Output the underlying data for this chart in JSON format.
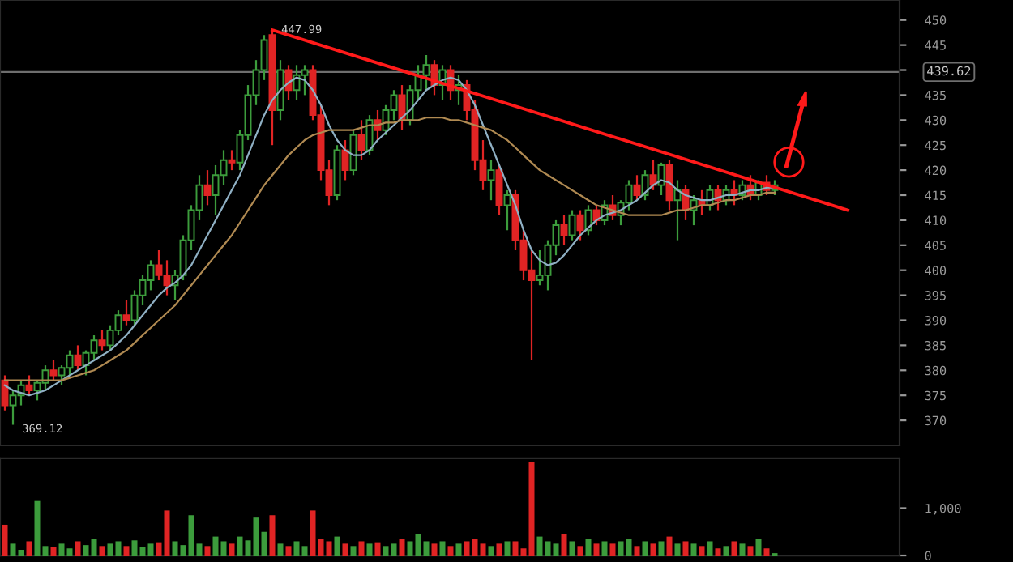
{
  "chart_data": [
    {
      "type": "candlestick",
      "categories": [
        null,
        null,
        null,
        null,
        null,
        null,
        null,
        null,
        null,
        null,
        null,
        null,
        null,
        null,
        null,
        null,
        null,
        null,
        null,
        null,
        null,
        null,
        null,
        null,
        null,
        null,
        null,
        null,
        null,
        null,
        null,
        null,
        null,
        null,
        null,
        null,
        null,
        null,
        null,
        null,
        null,
        null,
        null,
        null,
        null,
        null,
        null,
        null,
        null,
        null,
        null,
        null,
        null,
        null,
        null,
        null,
        null,
        null,
        null,
        null,
        null,
        null,
        null,
        null,
        null,
        null,
        null,
        null,
        null,
        null,
        null,
        null,
        null,
        null,
        null,
        null,
        null,
        null,
        null,
        null,
        null,
        null,
        null,
        null,
        null,
        null,
        null,
        null,
        null,
        null,
        null,
        null,
        null,
        null,
        null,
        null,
        null,
        null,
        null,
        null,
        null,
        null,
        null,
        null,
        null,
        null,
        null,
        null,
        null,
        null
      ],
      "ohlc": [
        [
          378,
          379,
          372,
          373
        ],
        [
          373,
          376,
          369.12,
          375
        ],
        [
          375,
          378,
          373,
          377
        ],
        [
          377,
          379,
          375,
          376
        ],
        [
          376,
          378,
          374,
          377.5
        ],
        [
          377.5,
          381,
          376,
          380
        ],
        [
          380,
          382,
          378,
          379
        ],
        [
          379,
          381,
          377,
          380.5
        ],
        [
          380.5,
          384,
          379,
          383
        ],
        [
          383,
          385,
          380,
          381
        ],
        [
          381,
          384,
          379,
          383.5
        ],
        [
          383.5,
          387,
          382,
          386
        ],
        [
          386,
          388,
          384,
          385
        ],
        [
          385,
          389,
          384,
          388
        ],
        [
          388,
          392,
          387,
          391
        ],
        [
          391,
          394,
          389,
          390
        ],
        [
          390,
          396,
          389,
          395
        ],
        [
          395,
          399,
          393,
          398
        ],
        [
          398,
          402,
          396,
          401
        ],
        [
          401,
          404,
          398,
          399
        ],
        [
          399,
          402,
          395,
          397
        ],
        [
          397,
          400,
          394,
          399
        ],
        [
          399,
          407,
          398,
          406
        ],
        [
          406,
          413,
          404,
          412
        ],
        [
          412,
          419,
          410,
          417
        ],
        [
          417,
          420,
          413,
          415
        ],
        [
          415,
          421,
          411,
          419
        ],
        [
          419,
          424,
          417,
          422
        ],
        [
          422,
          424,
          420,
          421.5
        ],
        [
          421.5,
          428,
          420,
          427
        ],
        [
          427,
          437,
          426,
          435
        ],
        [
          435,
          442,
          433,
          440
        ],
        [
          440,
          447,
          438,
          446
        ],
        [
          447,
          447.99,
          425,
          432
        ],
        [
          432,
          442,
          430,
          440
        ],
        [
          440,
          441,
          434,
          436
        ],
        [
          436,
          441,
          434,
          439
        ],
        [
          439,
          441,
          435,
          440
        ],
        [
          440,
          441,
          430,
          431
        ],
        [
          431,
          433,
          418,
          420
        ],
        [
          420,
          422,
          413,
          415
        ],
        [
          415,
          425,
          414,
          424
        ],
        [
          424,
          426,
          418,
          420
        ],
        [
          420,
          428,
          419,
          427
        ],
        [
          427,
          430,
          422,
          424
        ],
        [
          424,
          431,
          423,
          430
        ],
        [
          430,
          432,
          426,
          428
        ],
        [
          428,
          433,
          427,
          432
        ],
        [
          432,
          436,
          430,
          435
        ],
        [
          435,
          437,
          428,
          430
        ],
        [
          430,
          437,
          429,
          436
        ],
        [
          436,
          441,
          434,
          439
        ],
        [
          439,
          443,
          436,
          441
        ],
        [
          441,
          442,
          435,
          437
        ],
        [
          437,
          441,
          434,
          440
        ],
        [
          440,
          441,
          434,
          436
        ],
        [
          436,
          439,
          433,
          437
        ],
        [
          437,
          438,
          430,
          432
        ],
        [
          432,
          434,
          420,
          422
        ],
        [
          422,
          426,
          416,
          418
        ],
        [
          418,
          422,
          414,
          420
        ],
        [
          420,
          421,
          411,
          413
        ],
        [
          413,
          416,
          408,
          415
        ],
        [
          415,
          416,
          404,
          406
        ],
        [
          406,
          408,
          398,
          400
        ],
        [
          400,
          404,
          382,
          398
        ],
        [
          398,
          404,
          397,
          399
        ],
        [
          399,
          406,
          396,
          405
        ],
        [
          405,
          410,
          403,
          409
        ],
        [
          409,
          411,
          405,
          407
        ],
        [
          407,
          412,
          406,
          411
        ],
        [
          411,
          412,
          406,
          408
        ],
        [
          408,
          413,
          407,
          412
        ],
        [
          412,
          413,
          409,
          410
        ],
        [
          410,
          414,
          409,
          413
        ],
        [
          413,
          415,
          410,
          411
        ],
        [
          411,
          414,
          409,
          413.5
        ],
        [
          413.5,
          418,
          412,
          417
        ],
        [
          417,
          419,
          414,
          415
        ],
        [
          415,
          420,
          414,
          419
        ],
        [
          419,
          422,
          416,
          417
        ],
        [
          417,
          421.5,
          415,
          421
        ],
        [
          421,
          422,
          412,
          414
        ],
        [
          414,
          418,
          406,
          416
        ],
        [
          416,
          417,
          410,
          412
        ],
        [
          412,
          415,
          409,
          414
        ],
        [
          414,
          416,
          411,
          413
        ],
        [
          413,
          417,
          412,
          416
        ],
        [
          416,
          417,
          412,
          414
        ],
        [
          414,
          417,
          413,
          416
        ],
        [
          416,
          418,
          413,
          415
        ],
        [
          415,
          418,
          414,
          417
        ],
        [
          417,
          419,
          414,
          415
        ],
        [
          415,
          418,
          414,
          417.5
        ],
        [
          417.5,
          419,
          415,
          416
        ],
        [
          416,
          418,
          415,
          417
        ],
        null,
        null,
        null,
        null,
        null,
        null,
        null,
        null,
        null,
        null,
        null,
        null,
        null,
        null
      ],
      "colors": [
        "#e02424",
        "#3c9c3c",
        "#3c9c3c",
        "#e02424",
        "#3c9c3c",
        "#3c9c3c",
        "#e02424",
        "#3c9c3c",
        "#3c9c3c",
        "#e02424",
        "#3c9c3c",
        "#3c9c3c",
        "#e02424",
        "#3c9c3c",
        "#3c9c3c",
        "#e02424",
        "#3c9c3c",
        "#3c9c3c",
        "#3c9c3c",
        "#e02424",
        "#e02424",
        "#3c9c3c",
        "#3c9c3c",
        "#3c9c3c",
        "#3c9c3c",
        "#e02424",
        "#3c9c3c",
        "#3c9c3c",
        "#e02424",
        "#3c9c3c",
        "#3c9c3c",
        "#3c9c3c",
        "#3c9c3c",
        "#e02424",
        "#3c9c3c",
        "#e02424",
        "#3c9c3c",
        "#3c9c3c",
        "#e02424",
        "#e02424",
        "#e02424",
        "#3c9c3c",
        "#e02424",
        "#3c9c3c",
        "#e02424",
        "#3c9c3c",
        "#e02424",
        "#3c9c3c",
        "#3c9c3c",
        "#e02424",
        "#3c9c3c",
        "#3c9c3c",
        "#3c9c3c",
        "#e02424",
        "#3c9c3c",
        "#e02424",
        "#3c9c3c",
        "#e02424",
        "#e02424",
        "#e02424",
        "#3c9c3c",
        "#e02424",
        "#3c9c3c",
        "#e02424",
        "#e02424",
        "#e02424",
        "#3c9c3c",
        "#3c9c3c",
        "#3c9c3c",
        "#e02424",
        "#3c9c3c",
        "#e02424",
        "#3c9c3c",
        "#e02424",
        "#3c9c3c",
        "#e02424",
        "#3c9c3c",
        "#3c9c3c",
        "#e02424",
        "#3c9c3c",
        "#e02424",
        "#3c9c3c",
        "#e02424",
        "#3c9c3c",
        "#e02424",
        "#3c9c3c",
        "#e02424",
        "#3c9c3c",
        "#e02424",
        "#3c9c3c",
        "#e02424",
        "#3c9c3c",
        "#e02424",
        "#3c9c3c",
        "#e02424",
        "#3c9c3c",
        null,
        null,
        null,
        null,
        null,
        null,
        null,
        null,
        null,
        null,
        null,
        null,
        null,
        null
      ],
      "series": [
        {
          "type": "line",
          "color": "#8fb0c4",
          "values": [
            377,
            376,
            375.5,
            375,
            375.5,
            376,
            377,
            378,
            379,
            380,
            381,
            382,
            383,
            384,
            385.5,
            387,
            389,
            391,
            393,
            395,
            396.5,
            397.5,
            399,
            401,
            404,
            407,
            410,
            413,
            416,
            419,
            423,
            427,
            431,
            434,
            436,
            437.5,
            438.5,
            438,
            436,
            433,
            429,
            426,
            424,
            423,
            423,
            424,
            426,
            427.5,
            429,
            430.5,
            432,
            434,
            436,
            437,
            438,
            438.5,
            438,
            436,
            433,
            429,
            425,
            421,
            417,
            413,
            408,
            404,
            402,
            401,
            401.5,
            403,
            405,
            407,
            408.5,
            410,
            411,
            411.5,
            412,
            413,
            414,
            415.5,
            417,
            418,
            417.5,
            416,
            415,
            414.5,
            414,
            414,
            414.5,
            415,
            415,
            415.5,
            416,
            416,
            416.5,
            416.5,
            null,
            null,
            null,
            null,
            null,
            null,
            null,
            null,
            null,
            null,
            null,
            null,
            null,
            null
          ]
        },
        {
          "type": "line",
          "color": "#b08a52",
          "values": [
            378,
            378,
            378,
            378,
            378,
            378,
            378,
            378,
            378.5,
            379,
            379.5,
            380,
            381,
            382,
            383,
            384,
            385.5,
            387,
            388.5,
            390,
            391.5,
            393,
            395,
            397,
            399,
            401,
            403,
            405,
            407,
            409.5,
            412,
            414.5,
            417,
            419,
            421,
            423,
            424.5,
            426,
            427,
            427.5,
            428,
            428,
            428,
            428,
            428.5,
            429,
            429,
            429.5,
            429.5,
            430,
            430,
            430,
            430.5,
            430.5,
            430.5,
            430,
            430,
            429.5,
            429,
            428.5,
            428,
            427,
            426,
            424.5,
            423,
            421.5,
            420,
            419,
            418,
            417,
            416,
            415,
            414,
            413,
            412.5,
            412,
            411.5,
            411,
            411,
            411,
            411,
            411,
            411.5,
            412,
            412,
            412.5,
            413,
            413,
            413.5,
            414,
            414,
            414.5,
            415,
            415,
            415.5,
            415.5,
            null,
            null,
            null,
            null,
            null,
            null,
            null,
            null,
            null,
            null,
            null,
            null,
            null,
            null
          ]
        },
        {
          "type": "line",
          "color": "#ff1a1a",
          "values": [
            null,
            null,
            null,
            null,
            null,
            null,
            null,
            null,
            null,
            null,
            null,
            null,
            null,
            null,
            null,
            null,
            null,
            null,
            null,
            null,
            null,
            null,
            null,
            null,
            null,
            null,
            null,
            null,
            null,
            null,
            null,
            null,
            null,
            448,
            null,
            null,
            null,
            null,
            null,
            null,
            null,
            null,
            null,
            null,
            null,
            null,
            null,
            null,
            null,
            null,
            null,
            null,
            null,
            null,
            null,
            null,
            null,
            null,
            null,
            null,
            null,
            null,
            null,
            null,
            null,
            null,
            null,
            null,
            null,
            null,
            null,
            null,
            null,
            null,
            null,
            null,
            null,
            null,
            null,
            null,
            null,
            null,
            null,
            null,
            null,
            null,
            null,
            null,
            null,
            null,
            null,
            null,
            null,
            null,
            null,
            null,
            null,
            null,
            null,
            null,
            null,
            null,
            null,
            null,
            412,
            null,
            null,
            null,
            null,
            null
          ]
        }
      ],
      "ylim": [
        365,
        454
      ],
      "yticks": [
        370,
        375,
        380,
        385,
        390,
        395,
        400,
        405,
        410,
        415,
        420,
        425,
        430,
        435,
        {
          "value": 440,
          "label": null
        },
        445,
        450
      ],
      "ref_lines": [
        {
          "axis": "y",
          "value": 439.62,
          "label": "439.62",
          "color": "#6e6e6e"
        }
      ],
      "annotations": [
        {
          "text": "447.99",
          "y": 447.99
        },
        "369.12"
      ],
      "tick_labels": "y",
      "legend": false
    },
    {
      "type": "bar",
      "categories": [
        null,
        null,
        null,
        null,
        null,
        null,
        null,
        null,
        null,
        null,
        null,
        null,
        null,
        null,
        null,
        null,
        null,
        null,
        null,
        null,
        null,
        null,
        null,
        null,
        null,
        null,
        null,
        null,
        null,
        null,
        null,
        null,
        null,
        null,
        null,
        null,
        null,
        null,
        null,
        null,
        null,
        null,
        null,
        null,
        null,
        null,
        null,
        null,
        null,
        null,
        null,
        null,
        null,
        null,
        null,
        null,
        null,
        null,
        null,
        null,
        null,
        null,
        null,
        null,
        null,
        null,
        null,
        null,
        null,
        null,
        null,
        null,
        null,
        null,
        null,
        null,
        null,
        null,
        null,
        null,
        null,
        null,
        null,
        null,
        null,
        null,
        null,
        null,
        null,
        null,
        null,
        null,
        null,
        null,
        null,
        null,
        null,
        null,
        null,
        null,
        null,
        null,
        null,
        null,
        null,
        null,
        null,
        null,
        null,
        null
      ],
      "values": [
        650,
        250,
        120,
        300,
        1150,
        200,
        180,
        250,
        150,
        300,
        220,
        350,
        200,
        250,
        300,
        200,
        320,
        180,
        250,
        280,
        950,
        300,
        220,
        850,
        250,
        200,
        400,
        300,
        250,
        400,
        320,
        800,
        500,
        850,
        250,
        200,
        300,
        200,
        950,
        350,
        300,
        400,
        250,
        200,
        300,
        250,
        280,
        200,
        250,
        350,
        300,
        450,
        300,
        250,
        300,
        200,
        250,
        300,
        350,
        250,
        200,
        250,
        300,
        300,
        150,
        1970,
        400,
        300,
        250,
        450,
        300,
        200,
        350,
        250,
        300,
        250,
        300,
        350,
        200,
        300,
        250,
        300,
        400,
        250,
        300,
        250,
        200,
        300,
        150,
        200,
        300,
        250,
        200,
        350,
        150,
        50,
        null,
        null,
        null,
        null,
        null,
        null,
        null,
        null,
        null,
        null,
        null,
        null,
        null,
        null
      ],
      "colors": [
        "#e02424",
        "#3c9c3c",
        "#3c9c3c",
        "#e02424",
        "#3c9c3c",
        "#3c9c3c",
        "#e02424",
        "#3c9c3c",
        "#3c9c3c",
        "#e02424",
        "#3c9c3c",
        "#3c9c3c",
        "#e02424",
        "#3c9c3c",
        "#3c9c3c",
        "#e02424",
        "#3c9c3c",
        "#3c9c3c",
        "#3c9c3c",
        "#e02424",
        "#e02424",
        "#3c9c3c",
        "#3c9c3c",
        "#3c9c3c",
        "#3c9c3c",
        "#e02424",
        "#3c9c3c",
        "#3c9c3c",
        "#e02424",
        "#3c9c3c",
        "#3c9c3c",
        "#3c9c3c",
        "#3c9c3c",
        "#e02424",
        "#3c9c3c",
        "#e02424",
        "#3c9c3c",
        "#3c9c3c",
        "#e02424",
        "#e02424",
        "#e02424",
        "#3c9c3c",
        "#e02424",
        "#3c9c3c",
        "#e02424",
        "#3c9c3c",
        "#e02424",
        "#3c9c3c",
        "#3c9c3c",
        "#e02424",
        "#3c9c3c",
        "#3c9c3c",
        "#3c9c3c",
        "#e02424",
        "#3c9c3c",
        "#e02424",
        "#3c9c3c",
        "#e02424",
        "#e02424",
        "#e02424",
        "#3c9c3c",
        "#e02424",
        "#3c9c3c",
        "#e02424",
        "#e02424",
        "#e02424",
        "#3c9c3c",
        "#3c9c3c",
        "#3c9c3c",
        "#e02424",
        "#3c9c3c",
        "#e02424",
        "#3c9c3c",
        "#e02424",
        "#3c9c3c",
        "#e02424",
        "#3c9c3c",
        "#3c9c3c",
        "#e02424",
        "#3c9c3c",
        "#e02424",
        "#3c9c3c",
        "#e02424",
        "#3c9c3c",
        "#e02424",
        "#3c9c3c",
        "#e02424",
        "#3c9c3c",
        "#e02424",
        "#3c9c3c",
        "#e02424",
        "#3c9c3c",
        "#e02424",
        "#3c9c3c",
        "#e02424",
        "#3c9c3c",
        null,
        null,
        null,
        null,
        null,
        null,
        null,
        null,
        null,
        null,
        null,
        null,
        null,
        null
      ],
      "ylim": [
        0,
        2050
      ],
      "yticks": [
        0,
        {
          "value": 1000,
          "label": "1,000"
        }
      ],
      "tick_labels": "y",
      "legend": false
    }
  ]
}
